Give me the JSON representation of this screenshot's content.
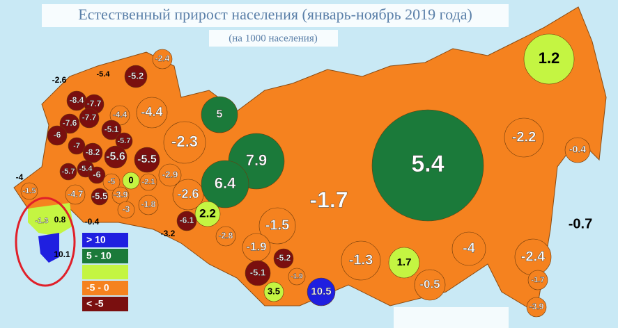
{
  "header": {
    "title": "Естественный прирост населения (январь-ноябрь 2019 года)",
    "subtitle": "(на 1000 населения)"
  },
  "legend": [
    {
      "label": "> 10",
      "color": "#1f1fe0"
    },
    {
      "label": "5 - 10",
      "color": "#1b7a3a"
    },
    {
      "color": "#c4f542"
    },
    {
      "label": "-5 - 0",
      "color": "#f5821f"
    },
    {
      "label": "< -5",
      "color": "#7a0f0f"
    }
  ],
  "regions": [
    -2.4,
    -5.4,
    -5.2,
    -2.6,
    -8.4,
    -7.7,
    -7.7,
    -4.4,
    -4.4,
    5,
    -7.6,
    -5.1,
    -6,
    -5.7,
    -7,
    -2.3,
    7.9,
    -2.2,
    -0.4,
    -8.2,
    -5.6,
    -5.5,
    5.4,
    -4,
    -5.7,
    -5.4,
    -6,
    -2.9,
    -1.5,
    -4.7,
    -5,
    0,
    -2.1,
    -2.6,
    6.4,
    -1.7,
    -5.5,
    -3.9,
    -3,
    -1.8,
    -1.3,
    0.8,
    -0.4,
    2.2,
    -6.1,
    -0.7,
    -3.2,
    -1.5,
    -2.8,
    -1.9,
    -4,
    1.2,
    10.1,
    -1.3,
    1.7,
    -2.4,
    -5.2,
    -5.1,
    -1.9,
    3.5,
    10.5,
    -0.5,
    -1.7,
    -3.9
  ]
}
